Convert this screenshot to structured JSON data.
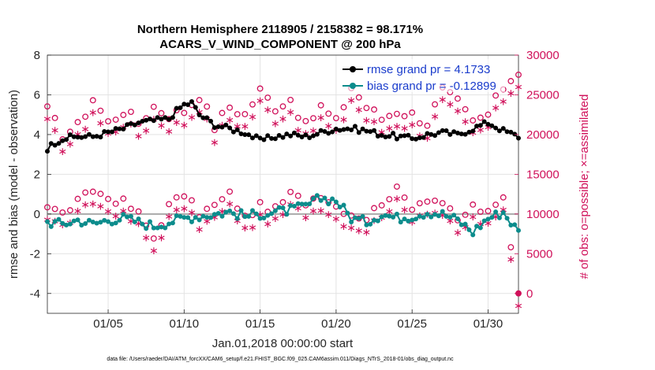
{
  "chart_data": {
    "type": "line",
    "title": "Northern Hemisphere 2118905 / 2158382 = 98.171%",
    "subtitle": "ACARS_V_WIND_COMPONENT @ 200 hPa",
    "xlabel": "Jan.01,2018 00:00:00 start",
    "ylabel_left": "rmse and bias (model - observation)",
    "ylabel_right": "# of obs: o=possible; ×=assimilated",
    "xlim": [
      1,
      32
    ],
    "ylim_left": [
      -5,
      8
    ],
    "ylim_right": [
      -2500,
      30000
    ],
    "x_ticks": [
      5,
      10,
      15,
      20,
      25,
      30
    ],
    "x_tick_labels": [
      "01/05",
      "01/10",
      "01/15",
      "01/20",
      "01/25",
      "01/30"
    ],
    "y_left_ticks": [
      -4,
      -2,
      0,
      2,
      4,
      6,
      8
    ],
    "y_left_tick_labels": [
      "-4",
      "-2",
      "0",
      "2",
      "4",
      "6",
      "8"
    ],
    "y_right_ticks": [
      0,
      5000,
      10000,
      15000,
      20000,
      25000,
      30000
    ],
    "y_right_tick_labels": [
      "0",
      "5000",
      "10000",
      "15000",
      "20000",
      "25000",
      "30000"
    ],
    "grid": true,
    "legend_position": "top-right",
    "series": [
      {
        "name": "rmse grand pr = 4.1733",
        "axis": "left",
        "color": "#000000",
        "key_points": [
          [
            1,
            3.3
          ],
          [
            1.5,
            3.6
          ],
          [
            2,
            3.8
          ],
          [
            3,
            3.9
          ],
          [
            4,
            3.9
          ],
          [
            5,
            4.1
          ],
          [
            6,
            4.3
          ],
          [
            7,
            4.6
          ],
          [
            8,
            4.7
          ],
          [
            9,
            4.8
          ],
          [
            9.5,
            5.2
          ],
          [
            10,
            5.5
          ],
          [
            10.5,
            5.6
          ],
          [
            11,
            5.0
          ],
          [
            12,
            4.5
          ],
          [
            13,
            4.3
          ],
          [
            14,
            4.1
          ],
          [
            15,
            3.7
          ],
          [
            16,
            3.9
          ],
          [
            17,
            4.0
          ],
          [
            18,
            3.9
          ],
          [
            19,
            4.1
          ],
          [
            20,
            4.3
          ],
          [
            21,
            4.3
          ],
          [
            22,
            4.2
          ],
          [
            23,
            4.0
          ],
          [
            24,
            3.9
          ],
          [
            25,
            3.8
          ],
          [
            26,
            4.0
          ],
          [
            27,
            4.1
          ],
          [
            28,
            4.0
          ],
          [
            29,
            4.3
          ],
          [
            30,
            4.6
          ],
          [
            31,
            4.2
          ],
          [
            32,
            3.9
          ]
        ]
      },
      {
        "name": "bias grand pr = -0.12899",
        "axis": "left",
        "color": "#0c8c8c",
        "key_points": [
          [
            1,
            -0.4
          ],
          [
            2,
            -0.5
          ],
          [
            3,
            -0.3
          ],
          [
            4,
            -0.5
          ],
          [
            5,
            -0.3
          ],
          [
            6,
            -0.2
          ],
          [
            7,
            -0.4
          ],
          [
            8,
            -0.6
          ],
          [
            9,
            -0.4
          ],
          [
            10,
            -0.2
          ],
          [
            11,
            -0.1
          ],
          [
            12,
            0.0
          ],
          [
            13,
            0.1
          ],
          [
            14,
            -0.1
          ],
          [
            15,
            0.0
          ],
          [
            16,
            0.1
          ],
          [
            17,
            0.2
          ],
          [
            18,
            0.4
          ],
          [
            19,
            0.8
          ],
          [
            20,
            0.7
          ],
          [
            21,
            -0.2
          ],
          [
            22,
            -0.4
          ],
          [
            23,
            0.0
          ],
          [
            24,
            -0.2
          ],
          [
            25,
            -0.1
          ],
          [
            26,
            0.1
          ],
          [
            27,
            0.0
          ],
          [
            28,
            -0.3
          ],
          [
            29,
            -0.9
          ],
          [
            30,
            -0.2
          ],
          [
            31,
            0.1
          ],
          [
            32,
            -0.9
          ]
        ]
      },
      {
        "name": "possible",
        "axis": "right",
        "color": "#d0105a",
        "key_points": [
          [
            1,
            23000
          ],
          [
            2,
            20000
          ],
          [
            3,
            21000
          ],
          [
            4,
            24500
          ],
          [
            5,
            21500
          ],
          [
            6,
            23000
          ],
          [
            7,
            21500
          ],
          [
            8,
            23500
          ],
          [
            9,
            22500
          ],
          [
            10,
            23000
          ],
          [
            11,
            25000
          ],
          [
            12,
            21000
          ],
          [
            13,
            23500
          ],
          [
            14,
            22500
          ],
          [
            15,
            25500
          ],
          [
            16,
            23500
          ],
          [
            17,
            24500
          ],
          [
            18,
            21000
          ],
          [
            19,
            23500
          ],
          [
            20,
            21500
          ],
          [
            21,
            26000
          ],
          [
            22,
            23500
          ],
          [
            23,
            22000
          ],
          [
            24,
            23000
          ],
          [
            25,
            22500
          ],
          [
            26,
            21500
          ],
          [
            27,
            25500
          ],
          [
            28,
            24000
          ],
          [
            29,
            21500
          ],
          [
            30,
            22500
          ],
          [
            31,
            26000
          ],
          [
            32,
            28000
          ]
        ],
        "lower_key_points": [
          [
            1,
            11000
          ],
          [
            2,
            10000
          ],
          [
            3,
            11500
          ],
          [
            4,
            13000
          ],
          [
            5,
            12000
          ],
          [
            6,
            11500
          ],
          [
            7,
            10000
          ],
          [
            8,
            7000
          ],
          [
            9,
            11000
          ],
          [
            10,
            12500
          ],
          [
            11,
            10000
          ],
          [
            12,
            11000
          ],
          [
            13,
            12500
          ],
          [
            14,
            9500
          ],
          [
            15,
            11000
          ],
          [
            16,
            10500
          ],
          [
            17,
            12500
          ],
          [
            18,
            11500
          ],
          [
            19,
            12500
          ],
          [
            20,
            11000
          ],
          [
            21,
            10000
          ],
          [
            22,
            9500
          ],
          [
            23,
            11500
          ],
          [
            24,
            13000
          ],
          [
            25,
            11000
          ],
          [
            26,
            12000
          ],
          [
            27,
            11500
          ],
          [
            28,
            9000
          ],
          [
            29,
            11000
          ],
          [
            30,
            10000
          ],
          [
            31,
            12000
          ],
          [
            32,
            200
          ]
        ]
      }
    ]
  },
  "footnote": "data file: /Users/raeder/DAI/ATM_forcXX/CAM6_setup/f.e21.FHIST_BGC.f09_025.CAM6assim.011/Diags_NTrS_2018-01/obs_diag_output.nc"
}
